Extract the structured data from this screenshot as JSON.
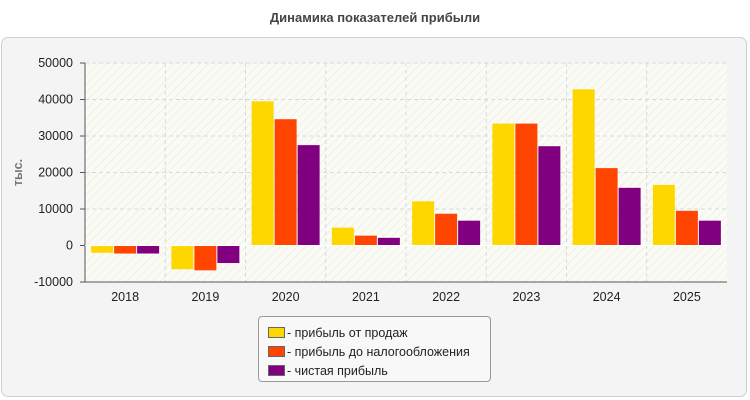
{
  "chart_data": {
    "type": "bar",
    "title": "Динамика показателей прибыли",
    "xlabel": "",
    "ylabel": "тыс.",
    "ylim": [
      -10000,
      50000
    ],
    "yticks": [
      -10000,
      0,
      10000,
      20000,
      30000,
      40000,
      50000
    ],
    "grid": true,
    "legend_placement": "bottom-center",
    "categories": [
      "2018",
      "2019",
      "2020",
      "2021",
      "2022",
      "2023",
      "2024",
      "2025"
    ],
    "series": [
      {
        "name": "- прибыль от продаж",
        "color": "#ffd700",
        "values": [
          -2000,
          -6500,
          39500,
          4900,
          12100,
          33400,
          42800,
          16600
        ]
      },
      {
        "name": "- прибыль до налогообложения",
        "color": "#ff4500",
        "values": [
          -2200,
          -6800,
          34600,
          2700,
          8700,
          33400,
          21200,
          9500
        ]
      },
      {
        "name": "- чистая прибыль",
        "color": "#800080",
        "values": [
          -2200,
          -4800,
          27500,
          2100,
          6800,
          27200,
          15800,
          6800
        ]
      }
    ]
  }
}
